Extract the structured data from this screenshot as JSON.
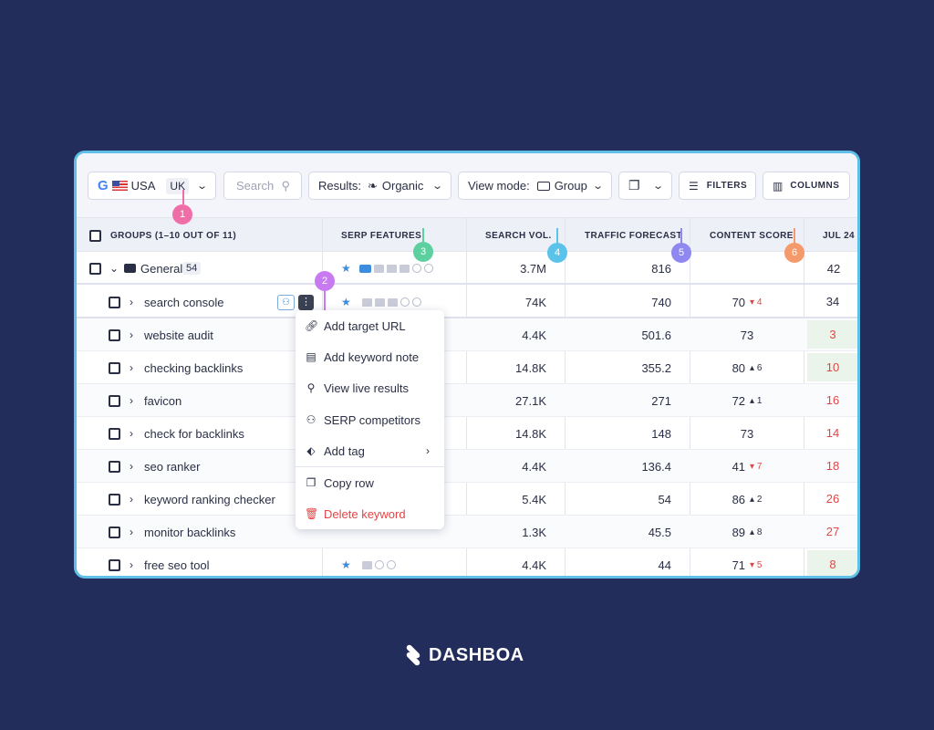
{
  "toolbar": {
    "country": "USA",
    "region": "UK",
    "search_placeholder": "Search",
    "results_label": "Results:",
    "results_value": "Organic",
    "viewmode_label": "View mode:",
    "viewmode_value": "Group",
    "filters_label": "FILTERS",
    "columns_label": "COLUMNS"
  },
  "header": {
    "groups": "GROUPS (1–10 OUT OF 11)",
    "serp": "SERP FEATURES",
    "volume": "SEARCH VOL.",
    "traffic": "TRAFFIC FORECAST",
    "content": "CONTENT SCORE",
    "date": "JUL 24"
  },
  "group": {
    "name": "General",
    "count": "54",
    "volume": "3.7M",
    "traffic": "816",
    "date_val": "42"
  },
  "rows": [
    {
      "name": "search console",
      "volume": "74K",
      "traffic": "740",
      "score": "70",
      "delta": "4",
      "dir": "down",
      "date_val": "34"
    },
    {
      "name": "website audit",
      "volume": "4.4K",
      "traffic": "501.6",
      "score": "73",
      "delta": "",
      "dir": "",
      "date_val": "3"
    },
    {
      "name": "checking backlinks",
      "volume": "14.8K",
      "traffic": "355.2",
      "score": "80",
      "delta": "6",
      "dir": "up",
      "date_val": "10"
    },
    {
      "name": "favicon",
      "volume": "27.1K",
      "traffic": "271",
      "score": "72",
      "delta": "1",
      "dir": "up",
      "date_val": "16"
    },
    {
      "name": "check for backlinks",
      "volume": "14.8K",
      "traffic": "148",
      "score": "73",
      "delta": "",
      "dir": "",
      "date_val": "14"
    },
    {
      "name": "seo ranker",
      "volume": "4.4K",
      "traffic": "136.4",
      "score": "41",
      "delta": "7",
      "dir": "down",
      "date_val": "18"
    },
    {
      "name": "keyword ranking checker",
      "volume": "5.4K",
      "traffic": "54",
      "score": "86",
      "delta": "2",
      "dir": "up",
      "date_val": "26"
    },
    {
      "name": "monitor backlinks",
      "volume": "1.3K",
      "traffic": "45.5",
      "score": "89",
      "delta": "8",
      "dir": "up",
      "date_val": "27"
    },
    {
      "name": "free seo tool",
      "volume": "4.4K",
      "traffic": "44",
      "score": "71",
      "delta": "5",
      "dir": "down",
      "date_val": "8"
    }
  ],
  "menu": [
    {
      "label": "Add target URL",
      "icon": "link-icon"
    },
    {
      "label": "Add keyword note",
      "icon": "note-icon"
    },
    {
      "label": "View live results",
      "icon": "search-icon"
    },
    {
      "label": "SERP competitors",
      "icon": "users-icon"
    },
    {
      "label": "Add tag",
      "icon": "tag-icon"
    },
    {
      "label": "Copy row",
      "icon": "copy-icon"
    },
    {
      "label": "Delete keyword",
      "icon": "trash-icon"
    }
  ],
  "badges": [
    "1",
    "2",
    "3",
    "4",
    "5",
    "6"
  ],
  "badge_colors": [
    "#f06ea8",
    "#c87af0",
    "#5dd0a0",
    "#5bc3ea",
    "#8e88f0",
    "#f59a6a"
  ],
  "brand": "DASHBOA"
}
